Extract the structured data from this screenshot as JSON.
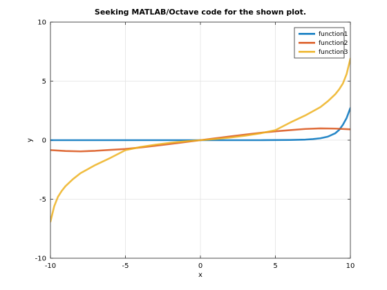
{
  "chart_data": {
    "type": "line",
    "title": "Seeking MATLAB/Octave code for the shown plot.",
    "xlabel": "x",
    "ylabel": "y",
    "xlim": [
      -10,
      10
    ],
    "ylim": [
      -10,
      10
    ],
    "xticks": [
      -10,
      -5,
      0,
      5,
      10
    ],
    "yticks": [
      -10,
      -5,
      0,
      5,
      10
    ],
    "xtick_labels": [
      "-10",
      "-5",
      "0",
      "5",
      "10"
    ],
    "ytick_labels": [
      "-10",
      "-5",
      "0",
      "5",
      "10"
    ],
    "grid": true,
    "legend_position": "top-right",
    "series": [
      {
        "name": "function1",
        "color": "#0072BD",
        "x": [
          -10,
          -8,
          -6,
          -4,
          -2,
          0,
          2,
          4,
          5,
          6,
          7,
          7.5,
          8,
          8.5,
          9,
          9.25,
          9.5,
          9.75,
          10
        ],
        "y": [
          0,
          0,
          0,
          0,
          0,
          0,
          0,
          0,
          0.01,
          0.02,
          0.05,
          0.09,
          0.16,
          0.3,
          0.59,
          0.87,
          1.3,
          1.88,
          2.72
        ]
      },
      {
        "name": "function2",
        "color": "#D95319",
        "x": [
          -10,
          -9,
          -8,
          -7,
          -6,
          -5,
          -4,
          -3,
          -2,
          -1,
          0,
          1,
          2,
          3,
          4,
          5,
          6,
          7,
          8,
          9,
          10
        ],
        "y": [
          -0.84,
          -0.92,
          -0.95,
          -0.9,
          -0.82,
          -0.75,
          -0.62,
          -0.47,
          -0.32,
          -0.16,
          0,
          0.16,
          0.32,
          0.47,
          0.62,
          0.75,
          0.85,
          0.95,
          1.0,
          0.98,
          0.92
        ]
      },
      {
        "name": "function3",
        "color": "#EDB120",
        "x": [
          -10,
          -9.75,
          -9.5,
          -9.25,
          -9,
          -8.5,
          -8,
          -7,
          -6,
          -5,
          -4,
          -3,
          -2,
          -1,
          0,
          1,
          2,
          3,
          4,
          5,
          6,
          7,
          8,
          8.5,
          9,
          9.25,
          9.5,
          9.75,
          10
        ],
        "y": [
          -6.9,
          -5.6,
          -4.8,
          -4.3,
          -3.9,
          -3.3,
          -2.8,
          -2.1,
          -1.5,
          -0.85,
          -0.58,
          -0.38,
          -0.22,
          -0.1,
          0,
          0.1,
          0.22,
          0.38,
          0.58,
          0.85,
          1.5,
          2.1,
          2.8,
          3.3,
          3.9,
          4.3,
          4.8,
          5.6,
          6.9
        ]
      }
    ]
  }
}
